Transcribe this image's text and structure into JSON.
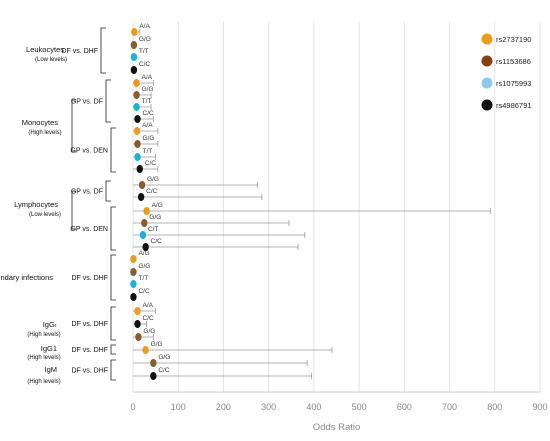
{
  "colors": {
    "rs2737190": "#f0991b",
    "rs1153686": "#8b3e12",
    "rs1075993": "#8fc9ef",
    "rs4986791": "#111111",
    "point_cyan": "#18b6d4",
    "point_brown": "#8a5c2e",
    "grid": "#e4e4e4",
    "whisker": "#9a9a9a"
  },
  "chart_data": {
    "type": "forest",
    "xlabel": "Odds Ratio",
    "xlim": [
      0,
      900
    ],
    "xticks": [
      0,
      100,
      200,
      300,
      400,
      500,
      600,
      700,
      800,
      900
    ],
    "grid": true,
    "legend_position": "top-right",
    "legend": [
      {
        "label": "rs2737190",
        "color_key": "rs2737190"
      },
      {
        "label": "rs1153686",
        "color_key": "rs1153686"
      },
      {
        "label": "rs1075993",
        "color_key": "rs1075993"
      },
      {
        "label": "rs4986791",
        "color_key": "rs4986791"
      }
    ],
    "groups": [
      {
        "name": "Leukocytes",
        "sub": "(Low levels)",
        "comparisons": [
          "DF vs. DHF"
        ]
      },
      {
        "name": "Monocytes",
        "sub": "(High levels)",
        "comparisons": [
          "GP vs. DF",
          "GP vs. DEN"
        ]
      },
      {
        "name": "Lymphocytes",
        "sub": "(Low levels)",
        "comparisons": [
          "GP vs. DF",
          "GP vs. DEN"
        ]
      },
      {
        "name": "Secondary infections",
        "sub": "",
        "comparisons": [
          "DF vs. DHF"
        ]
      },
      {
        "name": "IgGₜ",
        "sub": "(High levels)",
        "comparisons": [
          "DF vs. DHF"
        ]
      },
      {
        "name": "IgG1",
        "sub": "(High levels)",
        "comparisons": [
          "DF vs. DHF"
        ]
      },
      {
        "name": "IgM",
        "sub": "(High levels)",
        "comparisons": [
          "DF vs. DHF"
        ]
      }
    ],
    "rows": [
      {
        "group": "Leukocytes",
        "comparison": "DF vs. DHF",
        "genotype": "A/A",
        "color_key": "rs2737190",
        "or": 3,
        "ci": [
          0,
          15
        ]
      },
      {
        "group": "Leukocytes",
        "comparison": "DF vs. DHF",
        "genotype": "G/G",
        "color_key": "point_brown",
        "or": 2,
        "ci": [
          0,
          6
        ]
      },
      {
        "group": "Leukocytes",
        "comparison": "DF vs. DHF",
        "genotype": "T/T",
        "color_key": "point_cyan",
        "or": 2,
        "ci": [
          0,
          5
        ]
      },
      {
        "group": "Leukocytes",
        "comparison": "DF vs. DHF",
        "genotype": "C/C",
        "color_key": "rs4986791",
        "or": 2,
        "ci": [
          0,
          5
        ]
      },
      {
        "group": "Monocytes",
        "comparison": "GP vs. DF",
        "genotype": "A/A",
        "color_key": "rs2737190",
        "or": 8,
        "ci": [
          0,
          45
        ]
      },
      {
        "group": "Monocytes",
        "comparison": "GP vs. DF",
        "genotype": "G/G",
        "color_key": "point_brown",
        "or": 8,
        "ci": [
          0,
          40
        ]
      },
      {
        "group": "Monocytes",
        "comparison": "GP vs. DF",
        "genotype": "T/T",
        "color_key": "point_cyan",
        "or": 8,
        "ci": [
          0,
          40
        ]
      },
      {
        "group": "Monocytes",
        "comparison": "GP vs. DF",
        "genotype": "C/C",
        "color_key": "rs4986791",
        "or": 10,
        "ci": [
          0,
          45
        ]
      },
      {
        "group": "Monocytes",
        "comparison": "GP vs. DEN",
        "genotype": "A/A",
        "color_key": "rs2737190",
        "or": 9,
        "ci": [
          0,
          55
        ]
      },
      {
        "group": "Monocytes",
        "comparison": "GP vs. DEN",
        "genotype": "G/G",
        "color_key": "point_brown",
        "or": 10,
        "ci": [
          0,
          55
        ]
      },
      {
        "group": "Monocytes",
        "comparison": "GP vs. DEN",
        "genotype": "T/T",
        "color_key": "point_cyan",
        "or": 10,
        "ci": [
          0,
          50
        ]
      },
      {
        "group": "Monocytes",
        "comparison": "GP vs. DEN",
        "genotype": "C/C",
        "color_key": "rs4986791",
        "or": 15,
        "ci": [
          0,
          55
        ]
      },
      {
        "group": "Lymphocytes",
        "comparison": "GP vs. DF",
        "genotype": "G/G",
        "color_key": "point_brown",
        "or": 20,
        "ci": [
          0,
          275
        ]
      },
      {
        "group": "Lymphocytes",
        "comparison": "GP vs. DF",
        "genotype": "C/C",
        "color_key": "rs4986791",
        "or": 18,
        "ci": [
          0,
          285
        ]
      },
      {
        "group": "Lymphocytes",
        "comparison": "GP vs. DEN",
        "genotype": "A/G",
        "color_key": "rs2737190",
        "or": 30,
        "ci": [
          0,
          790
        ]
      },
      {
        "group": "Lymphocytes",
        "comparison": "GP vs. DEN",
        "genotype": "G/G",
        "color_key": "point_brown",
        "or": 25,
        "ci": [
          0,
          345
        ]
      },
      {
        "group": "Lymphocytes",
        "comparison": "GP vs. DEN",
        "genotype": "C/T",
        "color_key": "point_cyan",
        "or": 22,
        "ci": [
          0,
          380
        ]
      },
      {
        "group": "Lymphocytes",
        "comparison": "GP vs. DEN",
        "genotype": "C/C",
        "color_key": "rs4986791",
        "or": 28,
        "ci": [
          0,
          365
        ]
      },
      {
        "group": "Secondary infections",
        "comparison": "DF vs. DHF",
        "genotype": "A/G",
        "color_key": "rs2737190",
        "or": 1,
        "ci": [
          0,
          3
        ]
      },
      {
        "group": "Secondary infections",
        "comparison": "DF vs. DHF",
        "genotype": "G/G",
        "color_key": "point_brown",
        "or": 1,
        "ci": [
          0,
          3
        ]
      },
      {
        "group": "Secondary infections",
        "comparison": "DF vs. DHF",
        "genotype": "T/T",
        "color_key": "point_cyan",
        "or": 1,
        "ci": [
          0,
          3
        ]
      },
      {
        "group": "Secondary infections",
        "comparison": "DF vs. DHF",
        "genotype": "C/C",
        "color_key": "rs4986791",
        "or": 1,
        "ci": [
          0,
          3
        ]
      },
      {
        "group": "IgGₜ",
        "comparison": "DF vs. DHF",
        "genotype": "A/A",
        "color_key": "rs2737190",
        "or": 10,
        "ci": [
          0,
          50
        ]
      },
      {
        "group": "IgGₜ",
        "comparison": "DF vs. DHF",
        "genotype": "C/C",
        "color_key": "rs4986791",
        "or": 10,
        "ci": [
          0,
          30
        ]
      },
      {
        "group": "IgGₜ",
        "comparison": "DF vs. DHF",
        "genotype": "G/G",
        "color_key": "point_brown",
        "or": 12,
        "ci": [
          0,
          45
        ]
      },
      {
        "group": "IgG1",
        "comparison": "DF vs. DHF",
        "genotype": "G/G",
        "color_key": "rs2737190",
        "or": 28,
        "ci": [
          0,
          440
        ]
      },
      {
        "group": "IgM",
        "comparison": "DF vs. DHF",
        "genotype": "G/G",
        "color_key": "point_brown",
        "or": 45,
        "ci": [
          0,
          385
        ]
      },
      {
        "group": "IgM",
        "comparison": "DF vs. DHF",
        "genotype": "C/C",
        "color_key": "rs4986791",
        "or": 45,
        "ci": [
          0,
          395
        ]
      }
    ]
  }
}
